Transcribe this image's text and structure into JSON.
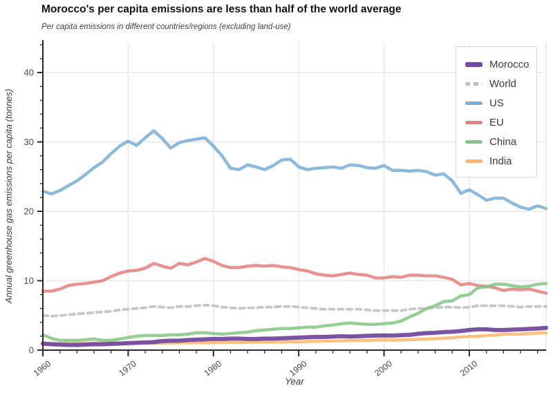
{
  "header": {
    "title": "Morocco's per capita emissions are less than half of the world average",
    "subtitle": "Per capita emissions in different countries/regions (excluding land-use)"
  },
  "axes": {
    "x": {
      "label": "Year",
      "major_ticks": [
        1960,
        1970,
        1980,
        1990,
        2000,
        2010
      ],
      "minor_step": 2,
      "range": [
        1960,
        2019
      ],
      "tick_label_rotation_deg": 38
    },
    "y": {
      "label": "Annual greenhouse gas emissions per capita (tonnes)",
      "major_ticks": [
        0,
        10,
        20,
        30,
        40
      ],
      "minor_step": 2,
      "range": [
        0,
        44.3
      ]
    }
  },
  "legend": {
    "position": "upper-right",
    "items": [
      "Morocco",
      "World",
      "US",
      "EU",
      "China",
      "India"
    ]
  },
  "style": {
    "background": "#ffffff",
    "gridline_color": "#e7e7e7",
    "spine_color": "#2a2a2a",
    "right_spine_color": "#e7e7e7",
    "tick_label_color": "#4a4a4a",
    "axis_label_color": "#3d3d3d",
    "title_color": "#141414",
    "subtitle_color": "#3f3f3f",
    "legend_border_color": "#d5d5d5",
    "legend_text_color": "#3a3a3a"
  },
  "chart_data": {
    "type": "line",
    "title": "Morocco's per capita emissions are less than half of the world average",
    "subtitle": "Per capita emissions in different countries/regions (excluding land-use)",
    "xlabel": "Year",
    "ylabel": "Annual greenhouse gas emissions per capita (tonnes)",
    "xlim": [
      1960,
      2019
    ],
    "ylim": [
      0,
      44.3
    ],
    "grid": true,
    "legend_position": "upper right",
    "x": [
      1960,
      1961,
      1962,
      1963,
      1964,
      1965,
      1966,
      1967,
      1968,
      1969,
      1970,
      1971,
      1972,
      1973,
      1974,
      1975,
      1976,
      1977,
      1978,
      1979,
      1980,
      1981,
      1982,
      1983,
      1984,
      1985,
      1986,
      1987,
      1988,
      1989,
      1990,
      1991,
      1992,
      1993,
      1994,
      1995,
      1996,
      1997,
      1998,
      1999,
      2000,
      2001,
      2002,
      2003,
      2004,
      2005,
      2006,
      2007,
      2008,
      2009,
      2010,
      2011,
      2012,
      2013,
      2014,
      2015,
      2016,
      2017,
      2018,
      2019
    ],
    "series": [
      {
        "name": "Morocco",
        "color": "#744aa0",
        "width": 6,
        "dash": null,
        "values": [
          0.95,
          0.85,
          0.8,
          0.75,
          0.75,
          0.8,
          0.85,
          0.85,
          0.9,
          0.95,
          1.0,
          1.05,
          1.1,
          1.15,
          1.3,
          1.35,
          1.35,
          1.45,
          1.5,
          1.55,
          1.6,
          1.6,
          1.65,
          1.65,
          1.6,
          1.6,
          1.65,
          1.65,
          1.7,
          1.75,
          1.8,
          1.85,
          1.9,
          1.9,
          1.95,
          2.0,
          1.95,
          2.0,
          2.05,
          2.1,
          2.1,
          2.1,
          2.15,
          2.2,
          2.35,
          2.45,
          2.5,
          2.6,
          2.65,
          2.75,
          2.9,
          3.0,
          3.0,
          2.9,
          2.9,
          2.95,
          3.0,
          3.05,
          3.1,
          3.2
        ]
      },
      {
        "name": "World",
        "color": "#bdbdbd",
        "width": 4,
        "dash": [
          7,
          6
        ],
        "values": [
          5.0,
          4.9,
          5.0,
          5.1,
          5.2,
          5.3,
          5.4,
          5.5,
          5.6,
          5.8,
          5.9,
          6.0,
          6.1,
          6.3,
          6.2,
          6.1,
          6.3,
          6.3,
          6.4,
          6.5,
          6.4,
          6.2,
          6.1,
          6.0,
          6.1,
          6.1,
          6.2,
          6.2,
          6.3,
          6.3,
          6.2,
          6.1,
          6.0,
          5.9,
          5.9,
          5.9,
          5.9,
          5.9,
          5.8,
          5.7,
          5.7,
          5.7,
          5.7,
          5.9,
          6.0,
          6.0,
          6.1,
          6.2,
          6.2,
          6.1,
          6.2,
          6.4,
          6.4,
          6.4,
          6.4,
          6.3,
          6.2,
          6.3,
          6.3,
          6.3
        ]
      },
      {
        "name": "US",
        "color": "#79add5",
        "width": 4.5,
        "dash": null,
        "values": [
          22.9,
          22.5,
          23.0,
          23.7,
          24.4,
          25.3,
          26.3,
          27.1,
          28.3,
          29.4,
          30.1,
          29.5,
          30.6,
          31.6,
          30.5,
          29.1,
          29.9,
          30.2,
          30.4,
          30.6,
          29.4,
          28.0,
          26.2,
          26.0,
          26.7,
          26.4,
          26.0,
          26.6,
          27.4,
          27.5,
          26.4,
          26.0,
          26.2,
          26.3,
          26.4,
          26.2,
          26.7,
          26.6,
          26.3,
          26.2,
          26.6,
          25.9,
          25.9,
          25.8,
          25.9,
          25.7,
          25.2,
          25.4,
          24.4,
          22.6,
          23.1,
          22.4,
          21.6,
          21.9,
          21.9,
          21.2,
          20.6,
          20.3,
          20.8,
          20.4
        ]
      },
      {
        "name": "EU",
        "color": "#e57f7f",
        "width": 4.5,
        "dash": null,
        "values": [
          8.5,
          8.5,
          8.8,
          9.3,
          9.5,
          9.6,
          9.8,
          10.0,
          10.6,
          11.1,
          11.4,
          11.5,
          11.8,
          12.5,
          12.1,
          11.8,
          12.5,
          12.3,
          12.7,
          13.2,
          12.8,
          12.2,
          11.9,
          11.9,
          12.1,
          12.2,
          12.1,
          12.2,
          12.0,
          11.9,
          11.6,
          11.4,
          11.0,
          10.8,
          10.7,
          10.9,
          11.1,
          10.9,
          10.8,
          10.4,
          10.4,
          10.6,
          10.5,
          10.8,
          10.8,
          10.7,
          10.7,
          10.5,
          10.2,
          9.4,
          9.6,
          9.3,
          9.2,
          9.0,
          8.6,
          8.8,
          8.7,
          8.8,
          8.5,
          8.2
        ]
      },
      {
        "name": "China",
        "color": "#83c583",
        "width": 4.5,
        "dash": null,
        "values": [
          2.2,
          1.7,
          1.4,
          1.4,
          1.4,
          1.5,
          1.6,
          1.4,
          1.4,
          1.6,
          1.8,
          2.0,
          2.1,
          2.1,
          2.1,
          2.2,
          2.2,
          2.3,
          2.5,
          2.5,
          2.4,
          2.3,
          2.4,
          2.5,
          2.6,
          2.8,
          2.9,
          3.0,
          3.1,
          3.1,
          3.2,
          3.3,
          3.3,
          3.5,
          3.6,
          3.8,
          3.9,
          3.8,
          3.7,
          3.7,
          3.8,
          3.9,
          4.2,
          4.8,
          5.3,
          6.0,
          6.4,
          7.0,
          7.1,
          7.8,
          8.0,
          9.0,
          9.1,
          9.5,
          9.5,
          9.3,
          9.1,
          9.2,
          9.5,
          9.6
        ]
      },
      {
        "name": "India",
        "color": "#fbb569",
        "width": 4.5,
        "dash": null,
        "values": [
          0.95,
          0.95,
          0.95,
          0.95,
          1.0,
          1.0,
          1.0,
          1.0,
          1.0,
          1.0,
          1.0,
          1.0,
          1.0,
          1.0,
          1.0,
          1.05,
          1.05,
          1.05,
          1.05,
          1.05,
          1.05,
          1.1,
          1.1,
          1.1,
          1.1,
          1.15,
          1.15,
          1.15,
          1.2,
          1.2,
          1.2,
          1.25,
          1.25,
          1.3,
          1.3,
          1.35,
          1.35,
          1.4,
          1.4,
          1.45,
          1.45,
          1.45,
          1.45,
          1.5,
          1.55,
          1.6,
          1.65,
          1.7,
          1.8,
          1.9,
          1.95,
          2.0,
          2.1,
          2.15,
          2.3,
          2.3,
          2.3,
          2.4,
          2.45,
          2.5
        ]
      }
    ],
    "draw_order": [
      "World",
      "US",
      "EU",
      "India",
      "China",
      "Morocco"
    ]
  }
}
